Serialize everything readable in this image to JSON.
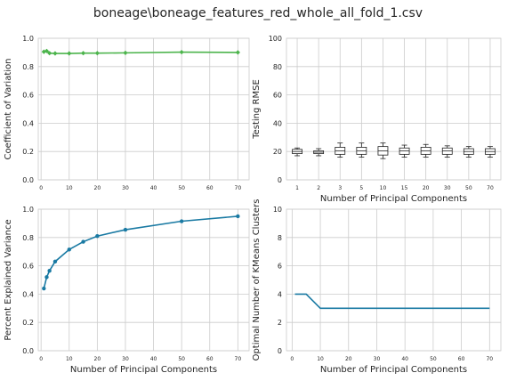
{
  "figure_title": "boneage\\boneage_features_red_whole_all_fold_1.csv",
  "colors": {
    "green": "#4cb44c",
    "blue": "#1a7aa3",
    "grid": "#cccccc",
    "box": "#222222"
  },
  "chart_data": [
    {
      "id": "cov",
      "type": "line",
      "title": "",
      "xlabel": "",
      "ylabel": "Coefficient of Variation",
      "xlim": [
        -1,
        74
      ],
      "ylim": [
        0,
        1
      ],
      "xticks": [
        0,
        10,
        20,
        30,
        40,
        50,
        60,
        70
      ],
      "yticks": [
        0.0,
        0.2,
        0.4,
        0.6,
        0.8,
        1.0
      ],
      "ytick_labels": [
        "0.0",
        "0.2",
        "0.4",
        "0.6",
        "0.8",
        "1.0"
      ],
      "x": [
        1,
        2,
        3,
        5,
        10,
        15,
        20,
        30,
        50,
        70
      ],
      "y": [
        0.905,
        0.91,
        0.895,
        0.893,
        0.893,
        0.895,
        0.895,
        0.897,
        0.902,
        0.9
      ],
      "color": "green",
      "marker": "diamond"
    },
    {
      "id": "rmse",
      "type": "box",
      "xlabel": "Number of Principal Components",
      "ylabel": "Testing RMSE",
      "ylim": [
        0,
        100
      ],
      "yticks": [
        0,
        20,
        40,
        60,
        80,
        100
      ],
      "ytick_labels": [
        "0",
        "20",
        "40",
        "60",
        "80",
        "100"
      ],
      "categories": [
        "1",
        "2",
        "3",
        "5",
        "10",
        "15",
        "20",
        "30",
        "50",
        "70"
      ],
      "boxes": [
        {
          "whislo": 17,
          "q1": 18.5,
          "med": 20,
          "q3": 21.5,
          "whishi": 22.5
        },
        {
          "whislo": 17,
          "q1": 18.5,
          "med": 19.5,
          "q3": 20.5,
          "whishi": 22
        },
        {
          "whislo": 16,
          "q1": 18,
          "med": 20.5,
          "q3": 23,
          "whishi": 26
        },
        {
          "whislo": 16,
          "q1": 18,
          "med": 20.5,
          "q3": 23,
          "whishi": 26
        },
        {
          "whislo": 15,
          "q1": 17.5,
          "med": 20.5,
          "q3": 23.5,
          "whishi": 26
        },
        {
          "whislo": 16,
          "q1": 18,
          "med": 20.5,
          "q3": 22.5,
          "whishi": 24.5
        },
        {
          "whislo": 16,
          "q1": 18,
          "med": 20.5,
          "q3": 23,
          "whishi": 25
        },
        {
          "whislo": 16,
          "q1": 18,
          "med": 20.5,
          "q3": 22.5,
          "whishi": 24
        },
        {
          "whislo": 16,
          "q1": 18,
          "med": 20,
          "q3": 22,
          "whishi": 23.5
        },
        {
          "whislo": 16,
          "q1": 18,
          "med": 20,
          "q3": 22,
          "whishi": 23.5
        }
      ]
    },
    {
      "id": "variance",
      "type": "line",
      "xlabel": "Number of Principal Components",
      "ylabel": "Percent Explained Variance",
      "xlim": [
        -1,
        74
      ],
      "ylim": [
        0,
        1
      ],
      "xticks": [
        0,
        10,
        20,
        30,
        40,
        50,
        60,
        70
      ],
      "yticks": [
        0.0,
        0.2,
        0.4,
        0.6,
        0.8,
        1.0
      ],
      "ytick_labels": [
        "0.0",
        "0.2",
        "0.4",
        "0.6",
        "0.8",
        "1.0"
      ],
      "x": [
        1,
        2,
        3,
        5,
        10,
        15,
        20,
        30,
        50,
        70
      ],
      "y": [
        0.44,
        0.52,
        0.565,
        0.63,
        0.715,
        0.77,
        0.81,
        0.855,
        0.915,
        0.95
      ],
      "color": "blue",
      "marker": "circle"
    },
    {
      "id": "clusters",
      "type": "line",
      "xlabel": "Number of Principal Components",
      "ylabel": "Optimal Number of KMeans Clusters",
      "xlim": [
        -2,
        74
      ],
      "ylim": [
        0,
        10
      ],
      "xticks": [
        0,
        10,
        20,
        30,
        40,
        50,
        60,
        70
      ],
      "yticks": [
        0,
        2,
        4,
        6,
        8,
        10
      ],
      "ytick_labels": [
        "0",
        "2",
        "4",
        "6",
        "8",
        "10"
      ],
      "x": [
        1,
        2,
        3,
        5,
        10,
        15,
        20,
        30,
        50,
        70
      ],
      "y": [
        4,
        4,
        4,
        4,
        3,
        3,
        3,
        3,
        3,
        3
      ],
      "color": "blue",
      "marker": "none"
    }
  ]
}
